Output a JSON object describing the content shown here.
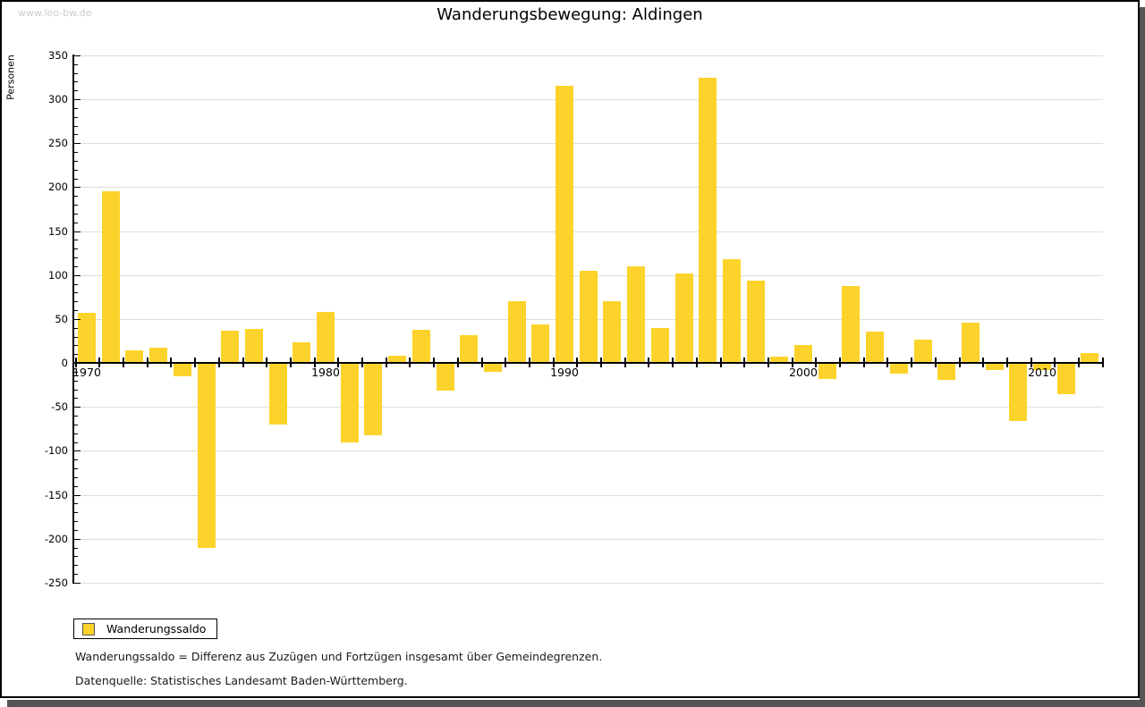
{
  "watermark": "www.leo-bw.de",
  "title": "Wanderungsbewegung: Aldingen",
  "y_axis": {
    "label": "Personen",
    "min": -250,
    "max": 350,
    "major_step": 50,
    "minor_step": 10
  },
  "x_axis": {
    "labeled_years": [
      1970,
      1980,
      1990,
      2000,
      2010
    ]
  },
  "legend": {
    "label": "Wanderungssaldo",
    "swatch_color": "#fcd32a"
  },
  "footnotes": [
    "Wanderungssaldo = Differenz aus Zuzügen und Fortzügen insgesamt über Gemeindegrenzen.",
    "Datenquelle: Statistisches Landesamt Baden-Württemberg."
  ],
  "chart_data": {
    "type": "bar",
    "title": "Wanderungsbewegung: Aldingen",
    "xlabel": "",
    "ylabel": "Personen",
    "ylim": [
      -250,
      350
    ],
    "grid": true,
    "gridline_step": 50,
    "legend_position": "bottom-left",
    "bar_color": "#fcd32a",
    "series_name": "Wanderungssaldo",
    "categories": [
      1970,
      1971,
      1972,
      1973,
      1974,
      1975,
      1976,
      1977,
      1978,
      1979,
      1980,
      1981,
      1982,
      1983,
      1984,
      1985,
      1986,
      1987,
      1988,
      1989,
      1990,
      1991,
      1992,
      1993,
      1994,
      1995,
      1996,
      1997,
      1998,
      1999,
      2000,
      2001,
      2002,
      2003,
      2004,
      2005,
      2006,
      2007,
      2008,
      2009,
      2010,
      2011,
      2012
    ],
    "values": [
      57,
      195,
      14,
      17,
      -15,
      -210,
      37,
      39,
      -70,
      23,
      58,
      -91,
      -82,
      8,
      38,
      -32,
      32,
      -10,
      70,
      44,
      315,
      105,
      70,
      110,
      40,
      102,
      324,
      118,
      94,
      7,
      20,
      -18,
      87,
      36,
      -12,
      26,
      -19,
      46,
      -8,
      -66,
      -8,
      -36,
      11
    ]
  }
}
